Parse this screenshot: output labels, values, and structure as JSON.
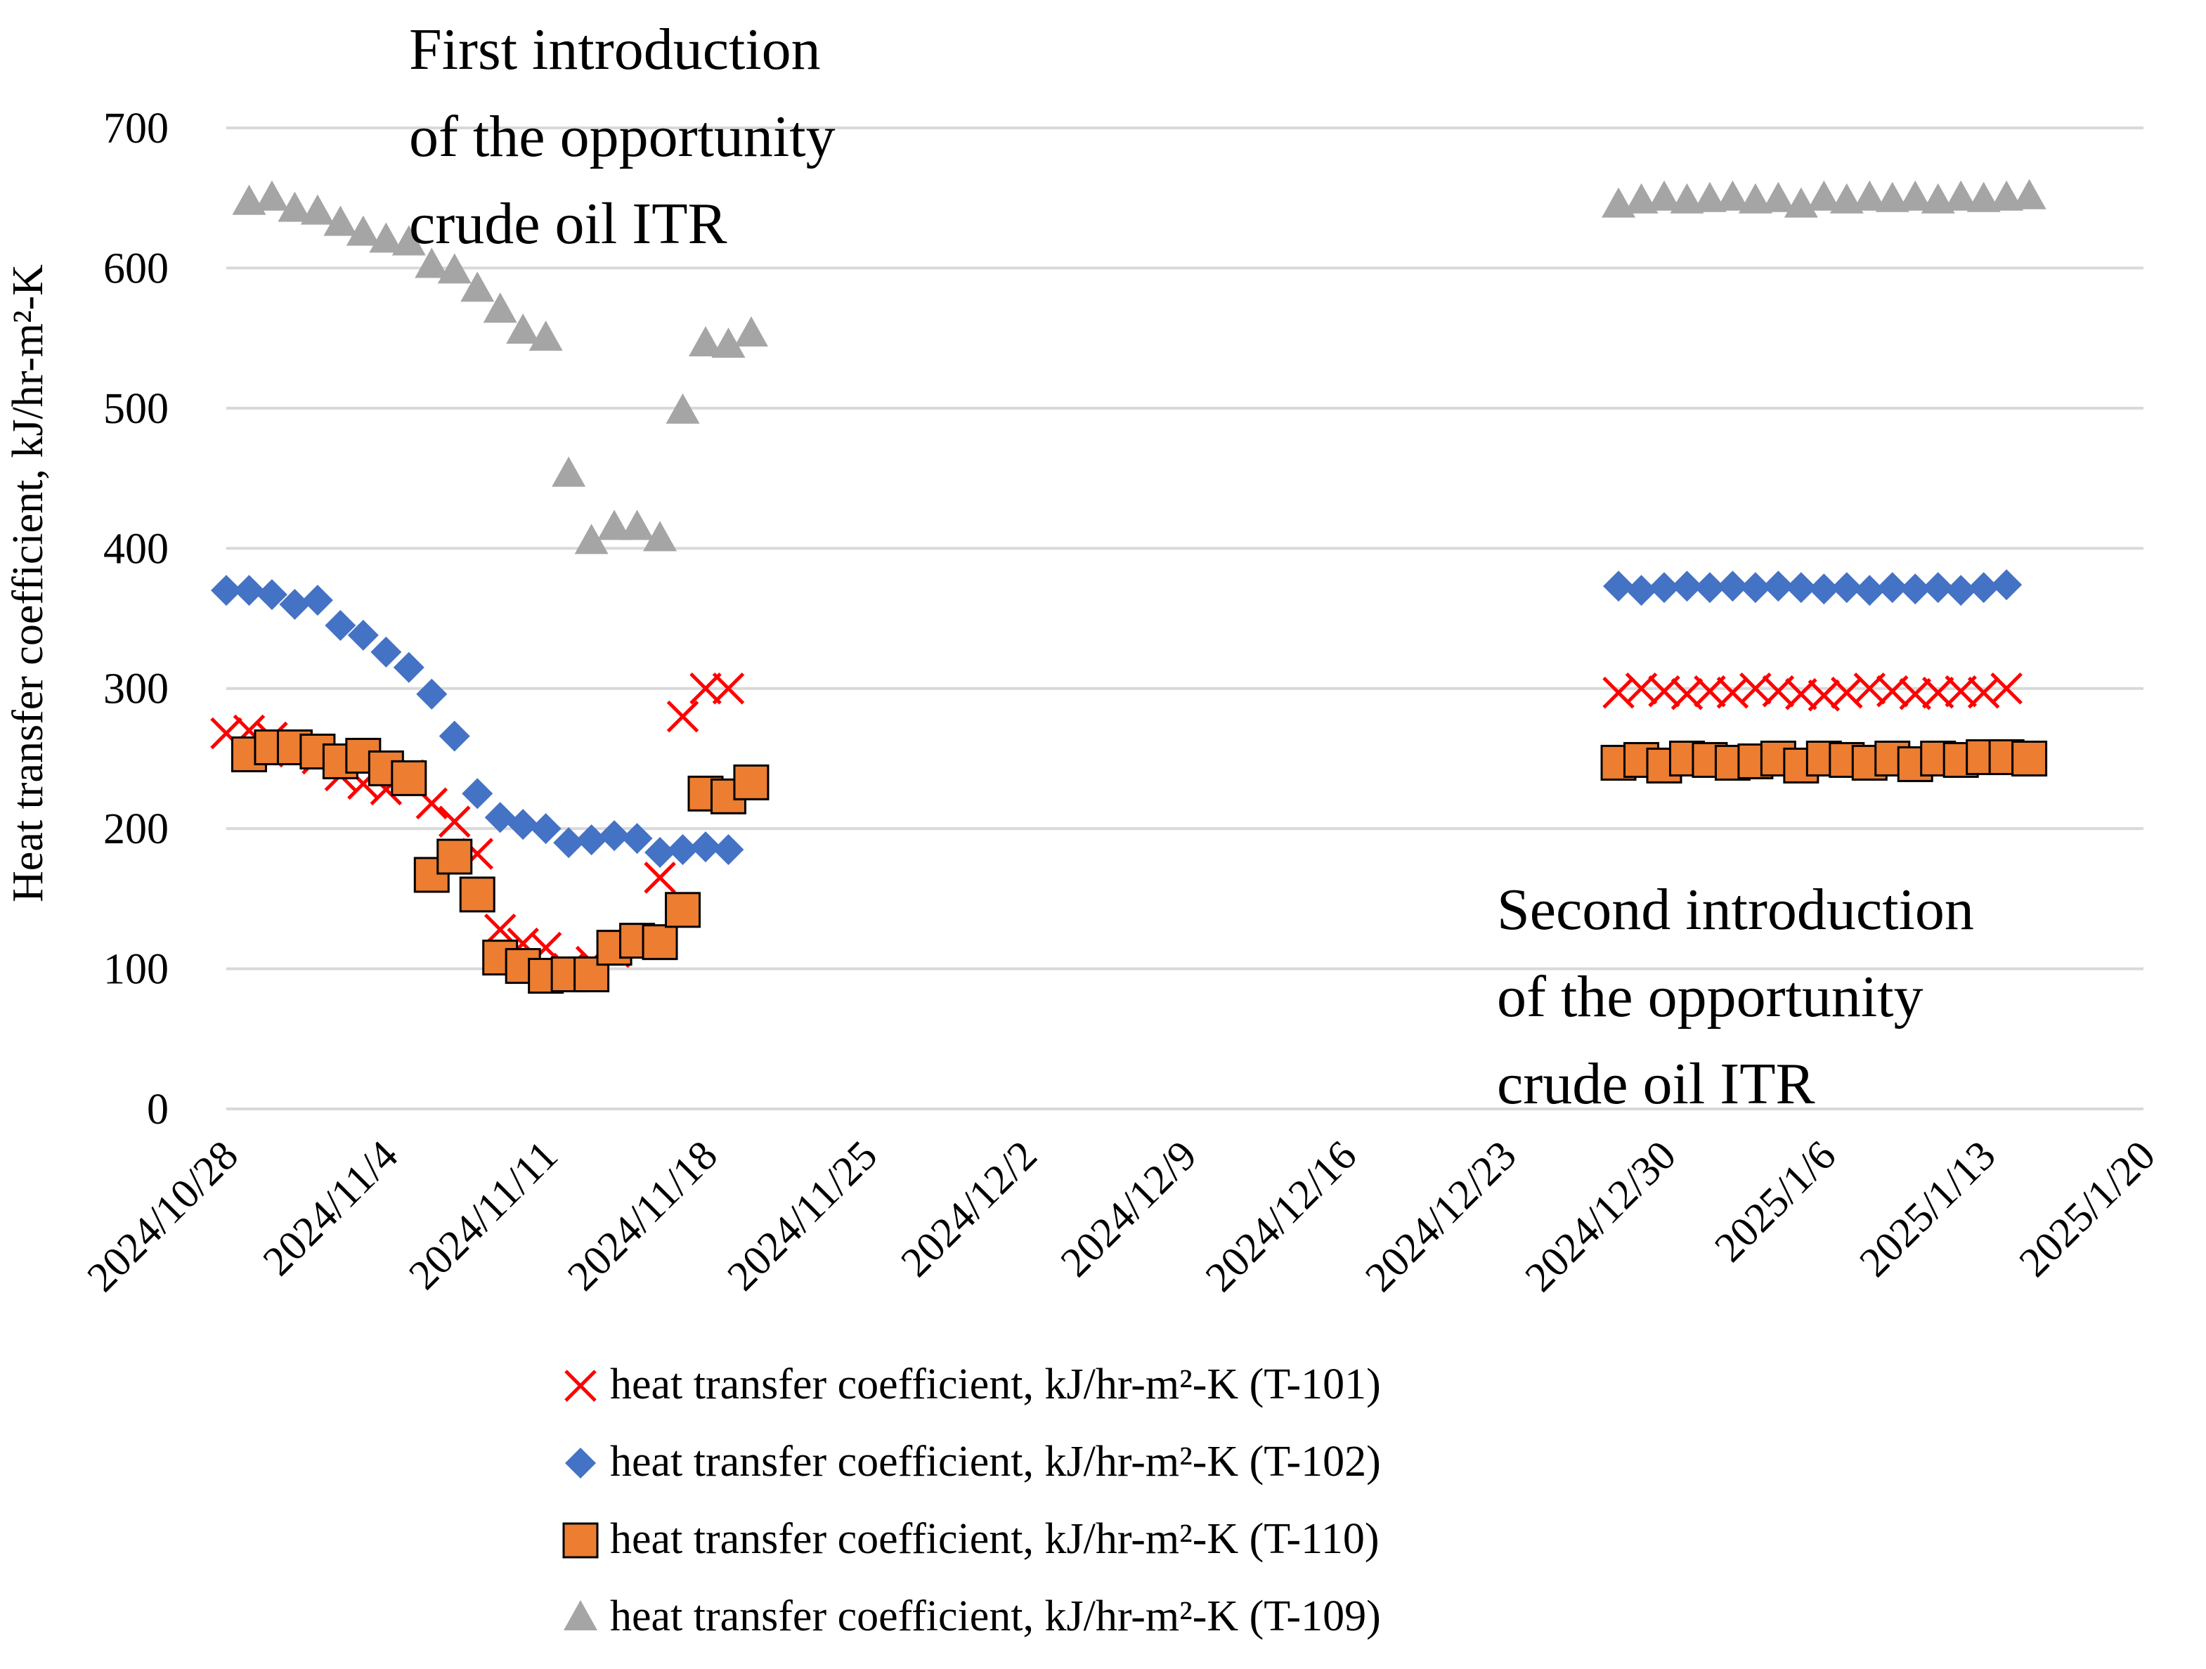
{
  "chart_data": {
    "type": "scatter",
    "title": "",
    "ylabel": "Heat transfer coefficient, kJ/hr-m²-K",
    "xlabel": "",
    "ylim": [
      0,
      700
    ],
    "yticks": [
      0,
      100,
      200,
      300,
      400,
      500,
      600,
      700
    ],
    "yticklabels": [
      "0",
      "100",
      "200",
      "300",
      "400",
      "500",
      "600",
      "700"
    ],
    "xlim_days": [
      0,
      84
    ],
    "xticks_days": [
      0,
      7,
      14,
      21,
      28,
      35,
      42,
      49,
      56,
      63,
      70,
      77,
      84
    ],
    "xticklabels": [
      "2024/10/28",
      "2024/11/4",
      "2024/11/11",
      "2024/11/18",
      "2024/11/25",
      "2024/12/2",
      "2024/12/9",
      "2024/12/16",
      "2024/12/23",
      "2024/12/30",
      "2025/1/6",
      "2025/1/13",
      "2025/1/20"
    ],
    "x_unit_note": "x values are days since 2024/10/28",
    "grid": true,
    "legend_position": "bottom",
    "annotations": [
      {
        "id": "first",
        "lines": [
          "First introduction",
          "of the opportunity",
          "crude oil ITR"
        ]
      },
      {
        "id": "second",
        "lines": [
          "Second introduction",
          "of the opportunity",
          "crude oil ITR"
        ]
      }
    ],
    "series": [
      {
        "name": "heat transfer coefficient, kJ/hr-m²-K (T-101)",
        "marker": "x",
        "color": "#ff0000",
        "points": [
          [
            0,
            268
          ],
          [
            1,
            270
          ],
          [
            2,
            265
          ],
          [
            3,
            255
          ],
          [
            4,
            250
          ],
          [
            5,
            238
          ],
          [
            6,
            232
          ],
          [
            7,
            228
          ],
          [
            8,
            238
          ],
          [
            9,
            218
          ],
          [
            10,
            205
          ],
          [
            11,
            182
          ],
          [
            12,
            128
          ],
          [
            13,
            118
          ],
          [
            14,
            115
          ],
          [
            15,
            100
          ],
          [
            16,
            105
          ],
          [
            17,
            112
          ],
          [
            18,
            118
          ],
          [
            19,
            165
          ],
          [
            20,
            280
          ],
          [
            21,
            300
          ],
          [
            22,
            300
          ],
          [
            61,
            297
          ],
          [
            62,
            300
          ],
          [
            63,
            298
          ],
          [
            64,
            296
          ],
          [
            65,
            298
          ],
          [
            66,
            297
          ],
          [
            67,
            300
          ],
          [
            68,
            298
          ],
          [
            69,
            296
          ],
          [
            70,
            295
          ],
          [
            71,
            297
          ],
          [
            72,
            300
          ],
          [
            73,
            298
          ],
          [
            74,
            296
          ],
          [
            75,
            297
          ],
          [
            76,
            298
          ],
          [
            77,
            297
          ],
          [
            78,
            300
          ]
        ]
      },
      {
        "name": "heat transfer coefficient, kJ/hr-m²-K (T-102)",
        "marker": "diamond",
        "color": "#4472c4",
        "points": [
          [
            0,
            370
          ],
          [
            1,
            370
          ],
          [
            2,
            367
          ],
          [
            3,
            360
          ],
          [
            4,
            363
          ],
          [
            5,
            345
          ],
          [
            6,
            338
          ],
          [
            7,
            326
          ],
          [
            8,
            315
          ],
          [
            9,
            296
          ],
          [
            10,
            266
          ],
          [
            11,
            225
          ],
          [
            12,
            208
          ],
          [
            13,
            203
          ],
          [
            14,
            200
          ],
          [
            15,
            190
          ],
          [
            16,
            192
          ],
          [
            17,
            195
          ],
          [
            18,
            193
          ],
          [
            19,
            183
          ],
          [
            20,
            185
          ],
          [
            21,
            187
          ],
          [
            22,
            185
          ],
          [
            61,
            373
          ],
          [
            62,
            370
          ],
          [
            63,
            372
          ],
          [
            64,
            373
          ],
          [
            65,
            372
          ],
          [
            66,
            373
          ],
          [
            67,
            372
          ],
          [
            68,
            373
          ],
          [
            69,
            372
          ],
          [
            70,
            371
          ],
          [
            71,
            372
          ],
          [
            72,
            370
          ],
          [
            73,
            372
          ],
          [
            74,
            371
          ],
          [
            75,
            372
          ],
          [
            76,
            370
          ],
          [
            77,
            372
          ],
          [
            78,
            374
          ]
        ]
      },
      {
        "name": "heat transfer coefficient, kJ/hr-m²-K (T-110)",
        "marker": "square",
        "color": "#ed7d31",
        "points": [
          [
            1,
            253
          ],
          [
            2,
            258
          ],
          [
            3,
            258
          ],
          [
            4,
            255
          ],
          [
            5,
            248
          ],
          [
            6,
            252
          ],
          [
            7,
            243
          ],
          [
            8,
            236
          ],
          [
            9,
            167
          ],
          [
            10,
            180
          ],
          [
            11,
            153
          ],
          [
            12,
            108
          ],
          [
            13,
            102
          ],
          [
            14,
            95
          ],
          [
            15,
            96
          ],
          [
            16,
            96
          ],
          [
            17,
            115
          ],
          [
            18,
            120
          ],
          [
            19,
            119
          ],
          [
            20,
            142
          ],
          [
            21,
            225
          ],
          [
            22,
            223
          ],
          [
            23,
            233
          ],
          [
            61,
            247
          ],
          [
            62,
            249
          ],
          [
            63,
            245
          ],
          [
            64,
            250
          ],
          [
            65,
            249
          ],
          [
            66,
            247
          ],
          [
            67,
            248
          ],
          [
            68,
            250
          ],
          [
            69,
            245
          ],
          [
            70,
            250
          ],
          [
            71,
            249
          ],
          [
            72,
            247
          ],
          [
            73,
            250
          ],
          [
            74,
            246
          ],
          [
            75,
            250
          ],
          [
            76,
            249
          ],
          [
            77,
            251
          ],
          [
            78,
            251
          ],
          [
            79,
            250
          ]
        ]
      },
      {
        "name": "heat transfer coefficient, kJ/hr-m²-K (T-109)",
        "marker": "triangle",
        "color": "#a5a5a5",
        "points": [
          [
            1,
            647
          ],
          [
            2,
            650
          ],
          [
            3,
            642
          ],
          [
            4,
            640
          ],
          [
            5,
            632
          ],
          [
            6,
            625
          ],
          [
            7,
            620
          ],
          [
            8,
            618
          ],
          [
            9,
            602
          ],
          [
            10,
            598
          ],
          [
            11,
            585
          ],
          [
            12,
            570
          ],
          [
            13,
            555
          ],
          [
            14,
            550
          ],
          [
            15,
            453
          ],
          [
            16,
            405
          ],
          [
            17,
            415
          ],
          [
            18,
            415
          ],
          [
            19,
            407
          ],
          [
            20,
            498
          ],
          [
            21,
            546
          ],
          [
            22,
            545
          ],
          [
            23,
            553
          ],
          [
            61,
            645
          ],
          [
            62,
            648
          ],
          [
            63,
            650
          ],
          [
            64,
            648
          ],
          [
            65,
            649
          ],
          [
            66,
            650
          ],
          [
            67,
            648
          ],
          [
            68,
            649
          ],
          [
            69,
            645
          ],
          [
            70,
            650
          ],
          [
            71,
            648
          ],
          [
            72,
            650
          ],
          [
            73,
            649
          ],
          [
            74,
            650
          ],
          [
            75,
            648
          ],
          [
            76,
            650
          ],
          [
            77,
            649
          ],
          [
            78,
            650
          ],
          [
            79,
            651
          ]
        ]
      }
    ]
  }
}
